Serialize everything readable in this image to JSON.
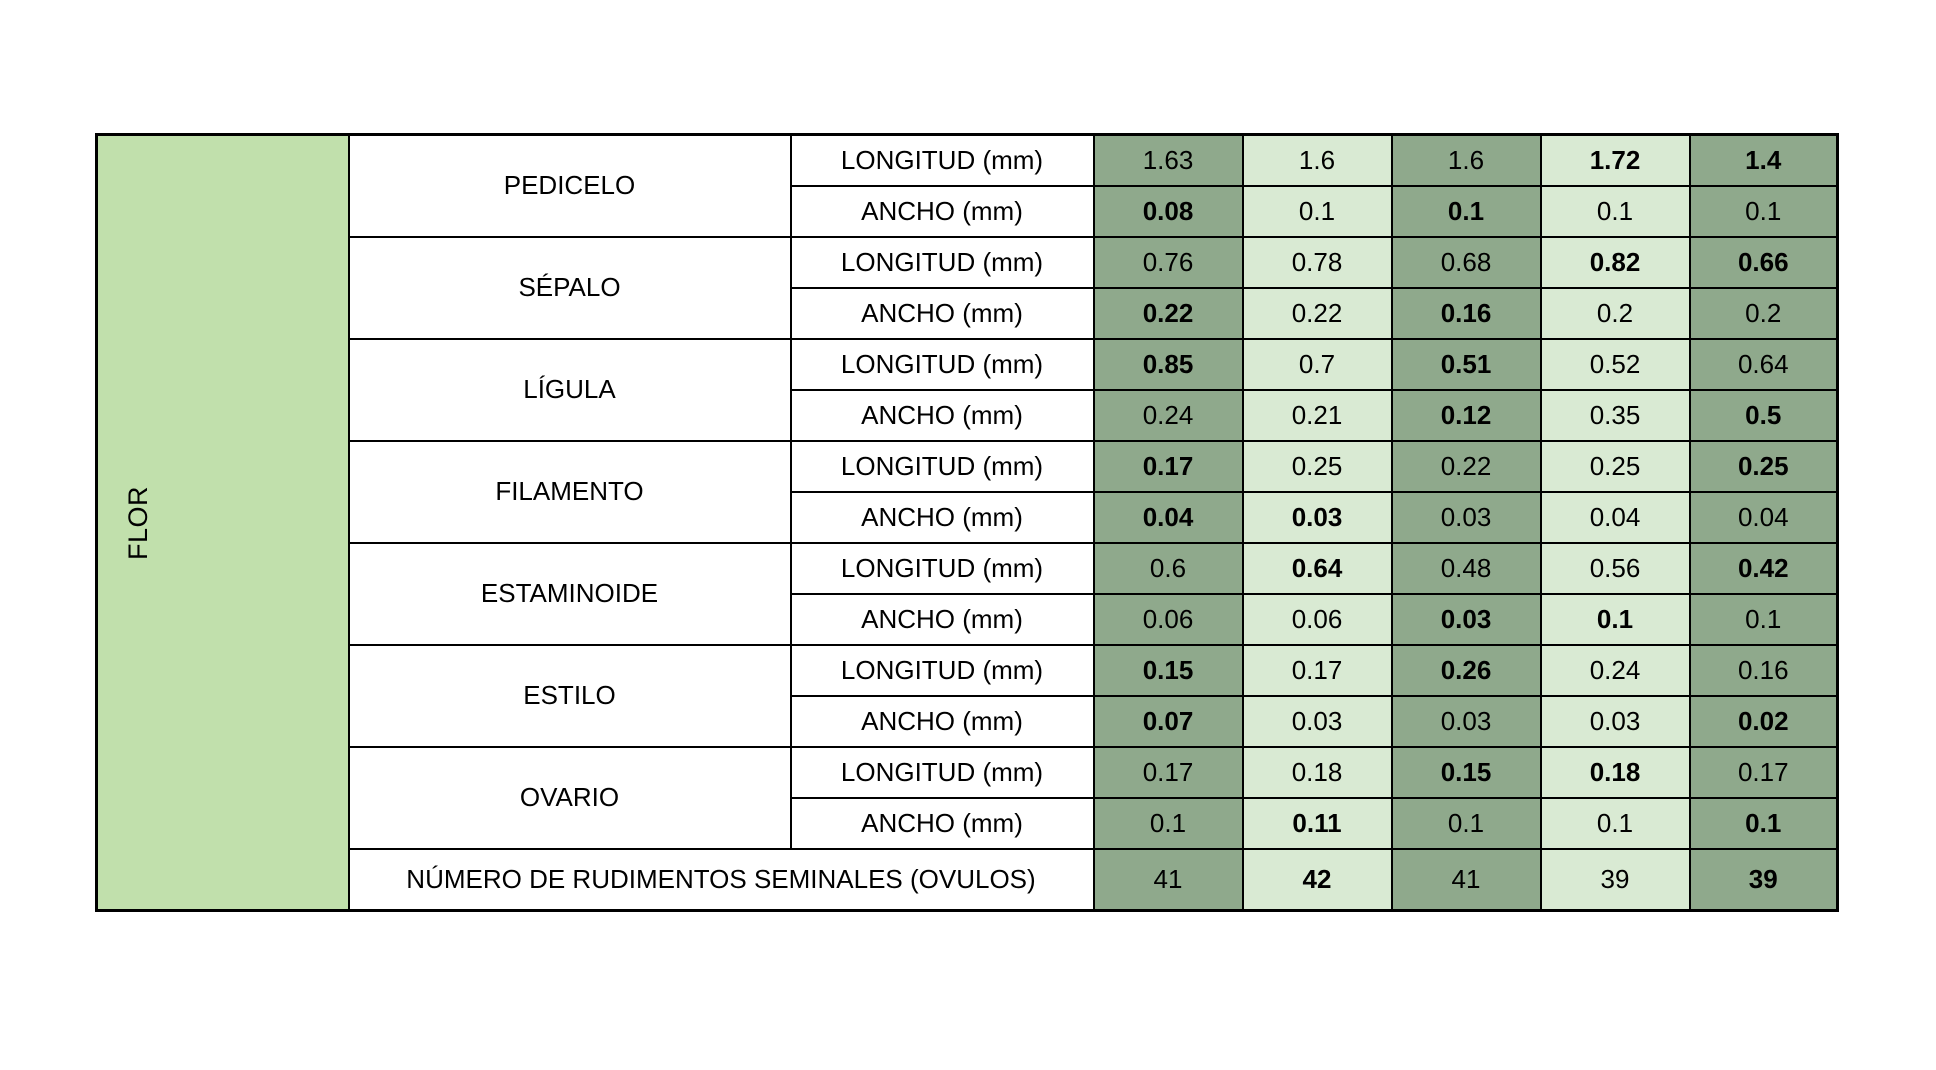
{
  "page": {
    "background": "#ffffff"
  },
  "table": {
    "group_label": "FLOR",
    "measure_labels": {
      "longitud": "LONGITUD (mm)",
      "ancho": "ANCHO (mm)"
    },
    "footer_label": "NÚMERO DE RUDIMENTOS SEMINALES (OVULOS)",
    "colors": {
      "group_cell": "#C1E0AC",
      "dark_col": "#8FA98C",
      "light_col": "#D9EAD3",
      "label_bg": "#FFFFFF",
      "border": "#000000",
      "text": "#000000"
    },
    "parts": [
      {
        "name": "PEDICELO",
        "longitud": {
          "values": [
            "1.63",
            "1.6",
            "1.6",
            "1.72",
            "1.4"
          ],
          "bold": [
            false,
            false,
            false,
            true,
            true
          ]
        },
        "ancho": {
          "values": [
            "0.08",
            "0.1",
            "0.1",
            "0.1",
            "0.1"
          ],
          "bold": [
            true,
            false,
            true,
            false,
            false
          ]
        }
      },
      {
        "name": "SÉPALO",
        "longitud": {
          "values": [
            "0.76",
            "0.78",
            "0.68",
            "0.82",
            "0.66"
          ],
          "bold": [
            false,
            false,
            false,
            true,
            true
          ]
        },
        "ancho": {
          "values": [
            "0.22",
            "0.22",
            "0.16",
            "0.2",
            "0.2"
          ],
          "bold": [
            true,
            false,
            true,
            false,
            false
          ]
        }
      },
      {
        "name": "LÍGULA",
        "longitud": {
          "values": [
            "0.85",
            "0.7",
            "0.51",
            "0.52",
            "0.64"
          ],
          "bold": [
            true,
            false,
            true,
            false,
            false
          ]
        },
        "ancho": {
          "values": [
            "0.24",
            "0.21",
            "0.12",
            "0.35",
            "0.5"
          ],
          "bold": [
            false,
            false,
            true,
            false,
            true
          ]
        }
      },
      {
        "name": "FILAMENTO",
        "longitud": {
          "values": [
            "0.17",
            "0.25",
            "0.22",
            "0.25",
            "0.25"
          ],
          "bold": [
            true,
            false,
            false,
            false,
            true
          ]
        },
        "ancho": {
          "values": [
            "0.04",
            "0.03",
            "0.03",
            "0.04",
            "0.04"
          ],
          "bold": [
            true,
            true,
            false,
            false,
            false
          ]
        }
      },
      {
        "name": "ESTAMINOIDE",
        "longitud": {
          "values": [
            "0.6",
            "0.64",
            "0.48",
            "0.56",
            "0.42"
          ],
          "bold": [
            false,
            true,
            false,
            false,
            true
          ]
        },
        "ancho": {
          "values": [
            "0.06",
            "0.06",
            "0.03",
            "0.1",
            "0.1"
          ],
          "bold": [
            false,
            false,
            true,
            true,
            false
          ]
        }
      },
      {
        "name": "ESTILO",
        "longitud": {
          "values": [
            "0.15",
            "0.17",
            "0.26",
            "0.24",
            "0.16"
          ],
          "bold": [
            true,
            false,
            true,
            false,
            false
          ]
        },
        "ancho": {
          "values": [
            "0.07",
            "0.03",
            "0.03",
            "0.03",
            "0.02"
          ],
          "bold": [
            true,
            false,
            false,
            false,
            true
          ]
        }
      },
      {
        "name": "OVARIO",
        "longitud": {
          "values": [
            "0.17",
            "0.18",
            "0.15",
            "0.18",
            "0.17"
          ],
          "bold": [
            false,
            false,
            true,
            true,
            false
          ]
        },
        "ancho": {
          "values": [
            "0.1",
            "0.11",
            "0.1",
            "0.1",
            "0.1"
          ],
          "bold": [
            false,
            true,
            false,
            false,
            true
          ]
        }
      }
    ],
    "footer": {
      "values": [
        "41",
        "42",
        "41",
        "39",
        "39"
      ],
      "bold": [
        false,
        true,
        false,
        false,
        true
      ]
    }
  }
}
